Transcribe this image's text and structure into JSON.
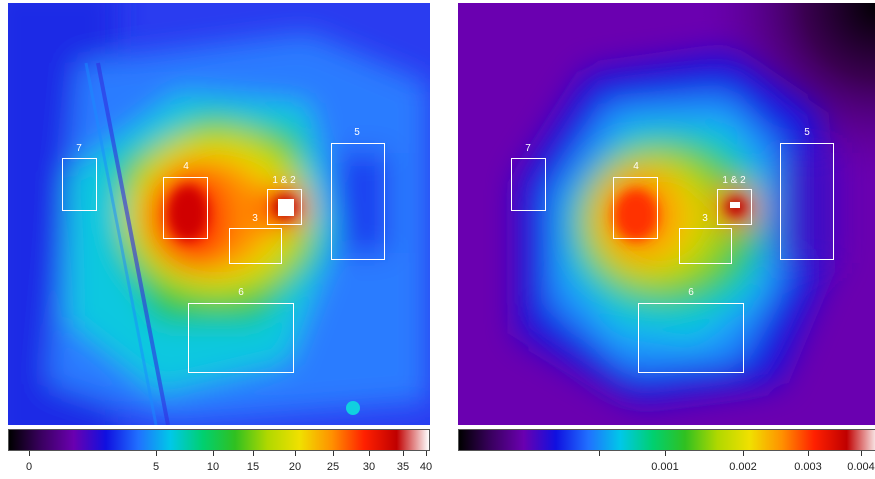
{
  "colors": {
    "colormap": [
      "#000000",
      "#3a0060",
      "#6a00b0",
      "#1010e0",
      "#2070ff",
      "#00c8e8",
      "#00d070",
      "#30c020",
      "#b0d800",
      "#f0e000",
      "#ff9000",
      "#ff2000",
      "#c00000",
      "#ffffff"
    ],
    "box_outline": "#ffffff"
  },
  "panels": [
    {
      "name": "left",
      "colorbar": {
        "ticks": [
          {
            "label": "0",
            "frac": 0.05
          },
          {
            "label": "5",
            "frac": 0.35
          },
          {
            "label": "10",
            "frac": 0.485
          },
          {
            "label": "15",
            "frac": 0.58
          },
          {
            "label": "20",
            "frac": 0.68
          },
          {
            "label": "25",
            "frac": 0.77
          },
          {
            "label": "30",
            "frac": 0.855
          },
          {
            "label": "35",
            "frac": 0.935
          },
          {
            "label": "40",
            "frac": 0.99
          }
        ]
      },
      "regions": [
        {
          "label": "1 & 2"
        },
        {
          "label": "3"
        },
        {
          "label": "4"
        },
        {
          "label": "5"
        },
        {
          "label": "6"
        },
        {
          "label": "7"
        }
      ]
    },
    {
      "name": "right",
      "colorbar": {
        "ticks": [
          {
            "label": "",
            "frac": 0.335
          },
          {
            "label": "0.001",
            "frac": 0.49
          },
          {
            "label": "0.002",
            "frac": 0.675
          },
          {
            "label": "0.003",
            "frac": 0.83
          },
          {
            "label": "0.004",
            "frac": 0.955
          }
        ]
      },
      "regions": [
        {
          "label": "1 & 2"
        },
        {
          "label": "3"
        },
        {
          "label": "4"
        },
        {
          "label": "5"
        },
        {
          "label": "6"
        },
        {
          "label": "7"
        }
      ]
    }
  ]
}
